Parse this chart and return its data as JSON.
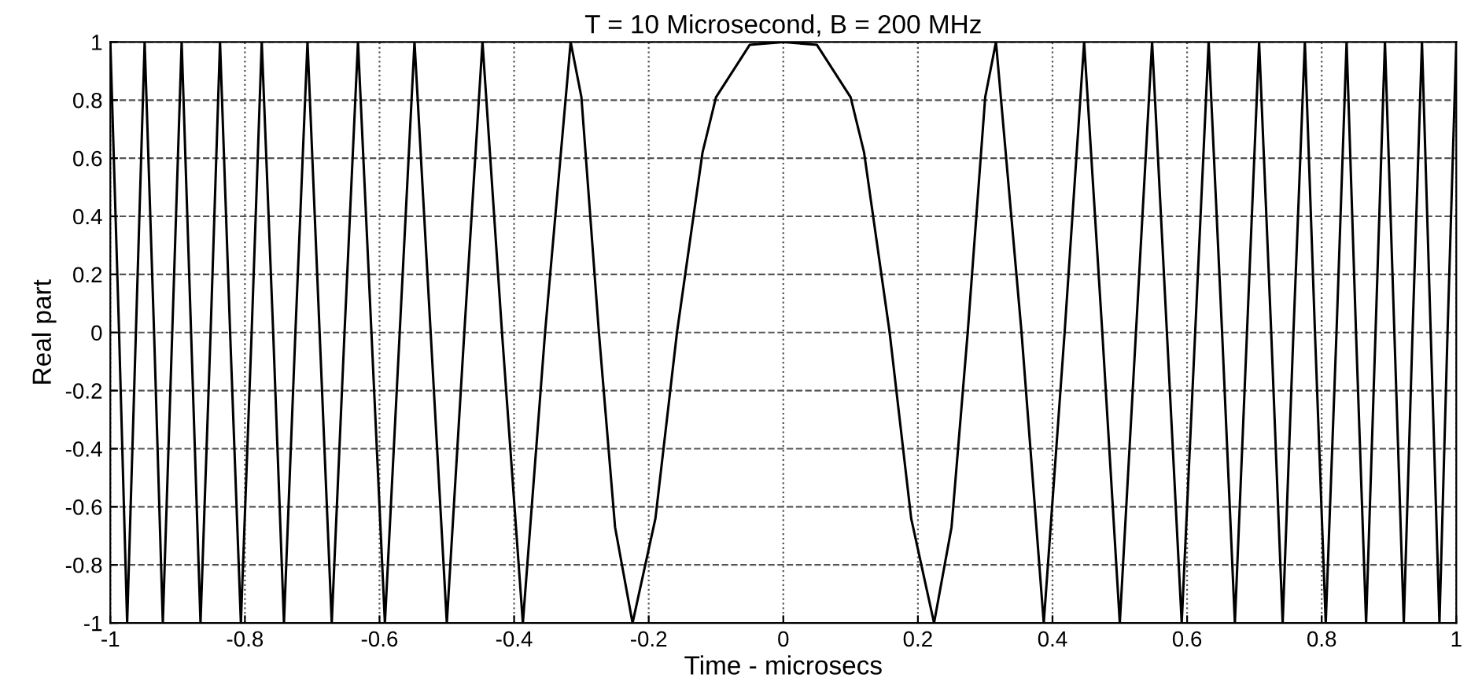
{
  "chart_data": {
    "type": "line",
    "title": "T = 10 Microsecond, B = 200 MHz",
    "xlabel": "Time - microsecs",
    "ylabel": "Real part",
    "xlim": [
      -1,
      1
    ],
    "ylim": [
      -1,
      1
    ],
    "xticks": [
      -1,
      -0.8,
      -0.6,
      -0.4,
      -0.2,
      0,
      0.2,
      0.4,
      0.6,
      0.8,
      1
    ],
    "yticks": [
      -1,
      -0.8,
      -0.6,
      -0.4,
      -0.2,
      0,
      0.2,
      0.4,
      0.6,
      0.8,
      1
    ],
    "grid": true,
    "series": [
      {
        "color": "#000000",
        "x": [
          -1,
          -0.987,
          -0.975,
          -0.962,
          -0.949,
          -0.935,
          -0.922,
          -0.908,
          -0.894,
          -0.88,
          -0.866,
          -0.851,
          -0.837,
          -0.822,
          -0.806,
          -0.79,
          -0.775,
          -0.758,
          -0.742,
          -0.725,
          -0.707,
          -0.689,
          -0.671,
          -0.652,
          -0.632,
          -0.612,
          -0.592,
          -0.57,
          -0.548,
          -0.524,
          -0.5,
          -0.474,
          -0.447,
          -0.418,
          -0.387,
          -0.354,
          -0.316,
          -0.3,
          -0.274,
          -0.25,
          -0.224,
          -0.19,
          -0.158,
          -0.12,
          -0.1,
          -0.05,
          0,
          0.05,
          0.1,
          0.12,
          0.158,
          0.19,
          0.224,
          0.25,
          0.274,
          0.3,
          0.316,
          0.354,
          0.387,
          0.418,
          0.447,
          0.474,
          0.5,
          0.524,
          0.548,
          0.57,
          0.592,
          0.612,
          0.632,
          0.652,
          0.671,
          0.689,
          0.707,
          0.725,
          0.742,
          0.758,
          0.775,
          0.79,
          0.806,
          0.822,
          0.837,
          0.851,
          0.866,
          0.88,
          0.894,
          0.908,
          0.922,
          0.935,
          0.949,
          0.962,
          0.975,
          0.987,
          1
        ],
        "values": [
          1,
          0,
          -1,
          0,
          1,
          0,
          -1,
          0,
          1,
          0,
          -1,
          0,
          1,
          0,
          -1,
          0,
          1,
          0,
          -1,
          0,
          1,
          0,
          -1,
          0,
          1,
          0,
          -1,
          0,
          1,
          0,
          -1,
          0,
          1,
          0,
          -1,
          0,
          1,
          0.81,
          0,
          -0.67,
          -1,
          -0.64,
          0,
          0.62,
          0.81,
          0.99,
          1,
          0.99,
          0.81,
          0.62,
          0,
          -0.64,
          -1,
          -0.67,
          0,
          0.81,
          1,
          0,
          -1,
          0,
          1,
          0,
          -1,
          0,
          1,
          0,
          -1,
          0,
          1,
          0,
          -1,
          0,
          1,
          0,
          -1,
          0,
          1,
          0,
          -1,
          0,
          1,
          0,
          -1,
          0,
          1,
          0,
          -1,
          0,
          1,
          0,
          -1,
          0,
          1
        ]
      }
    ]
  }
}
